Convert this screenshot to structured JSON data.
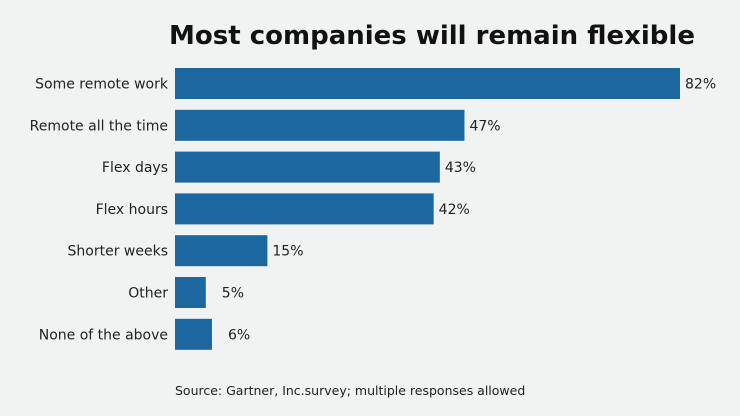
{
  "chart_data": {
    "type": "bar",
    "orientation": "horizontal",
    "title": "Most companies will remain flexible",
    "categories": [
      "Some remote work",
      "Remote all the time",
      "Flex days",
      "Flex hours",
      "Shorter weeks",
      "Other",
      "None of the above"
    ],
    "values": [
      82,
      47,
      43,
      42,
      15,
      5,
      6
    ],
    "value_labels": [
      "82%",
      "47%",
      "43%",
      "42%",
      "15%",
      "5%",
      "6%"
    ],
    "unit": "%",
    "xlim": [
      0,
      82
    ],
    "grid": false,
    "colors": {
      "bar": "#1c67a0",
      "background": "#f1f2f2"
    },
    "source": "Source: Gartner, Inc.survey; multiple responses allowed"
  }
}
